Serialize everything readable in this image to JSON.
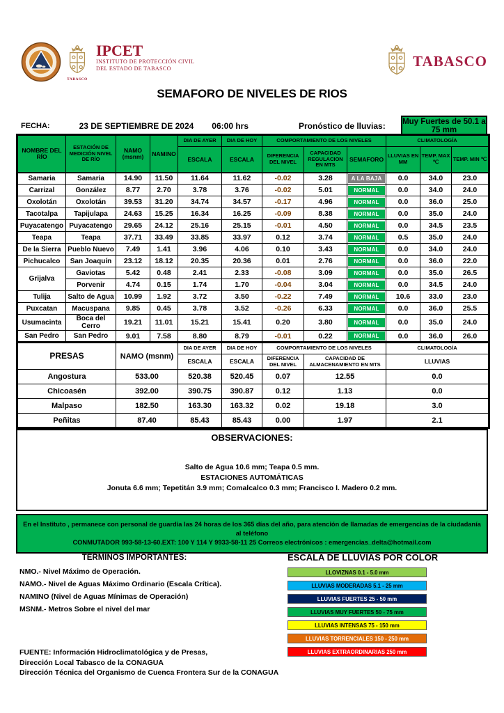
{
  "brand": {
    "ipcet_acronym": "IPCET",
    "ipcet_line1": "INSTITUTO DE PROTECCIÓN CIVIL",
    "ipcet_line2": "DEL ESTADO DE TABASCO",
    "left_crest_caption": "TABASCO",
    "right_wordmark": "TABASCO"
  },
  "title": "SEMAFORO DE NIVELES DE RIOS",
  "date_bar": {
    "fecha_label": "FECHA:",
    "fecha_value": "23 DE SEPTIEMBRE DE 2024",
    "hora": "06:00 hrs",
    "pronostico_label": "Pronóstico de lluvias:",
    "pronostico_value": "Muy Fuertes de 50.1 a 75 mm"
  },
  "rivers_table": {
    "headers": {
      "rio": "NOMBRE DEL RÍO",
      "estacion": "ESTACIÓN DE MEDICIÓN NIVEL DE RÍO",
      "namo": "NAMO (msnm)",
      "namino": "NAMINO",
      "ayer": "DIA DE AYER",
      "hoy": "DIA DE HOY",
      "escala": "ESCALA",
      "comportamiento": "COMPORTAMIENTO DE LOS NIVELES",
      "diferencia": "DIFERENCIA DEL NIVEL",
      "capacidad": "CAPACIDAD REGULACION EN MTS",
      "semaforo": "SEMAFORO",
      "climatologia": "CLIMATOLOGÍA",
      "lluvias": "LLUVIAS EN MM",
      "tmax": "TEMP. MAX ℃",
      "tmin": "TEMP. MIN ℃"
    },
    "rows": [
      {
        "rio": "Samaria",
        "estacion": "Samaria",
        "namo": "14.90",
        "namino": "11.50",
        "ayer": "11.64",
        "hoy": "11.62",
        "dif": "-0.02",
        "cap": "3.28",
        "sem": "A LA BAJA",
        "sem_color": "#808080",
        "lluvias": "0.0",
        "tmax": "34.0",
        "tmin": "23.0"
      },
      {
        "rio": "Carrizal",
        "estacion": "González",
        "namo": "8.77",
        "namino": "2.70",
        "ayer": "3.78",
        "hoy": "3.76",
        "dif": "-0.02",
        "cap": "5.01",
        "sem": "NORMAL",
        "sem_color": "#00B050",
        "lluvias": "0.0",
        "tmax": "34.0",
        "tmin": "24.0"
      },
      {
        "rio": "Oxolotán",
        "estacion": "Oxolotán",
        "namo": "39.53",
        "namino": "31.20",
        "ayer": "34.74",
        "hoy": "34.57",
        "dif": "-0.17",
        "cap": "4.96",
        "sem": "NORMAL",
        "sem_color": "#00B050",
        "lluvias": "0.0",
        "tmax": "36.0",
        "tmin": "25.0"
      },
      {
        "rio": "Tacotalpa",
        "estacion": "Tapijulapa",
        "namo": "24.63",
        "namino": "15.25",
        "ayer": "16.34",
        "hoy": "16.25",
        "dif": "-0.09",
        "cap": "8.38",
        "sem": "NORMAL",
        "sem_color": "#00B050",
        "lluvias": "0.0",
        "tmax": "35.0",
        "tmin": "24.0"
      },
      {
        "rio": "Puyacatengo",
        "estacion": "Puyacatengo",
        "namo": "29.65",
        "namino": "24.12",
        "ayer": "25.16",
        "hoy": "25.15",
        "dif": "-0.01",
        "cap": "4.50",
        "sem": "NORMAL",
        "sem_color": "#00B050",
        "lluvias": "0.0",
        "tmax": "34.5",
        "tmin": "23.5"
      },
      {
        "rio": "Teapa",
        "estacion": "Teapa",
        "namo": "37.71",
        "namino": "33.49",
        "ayer": "33.85",
        "hoy": "33.97",
        "dif": "0.12",
        "cap": "3.74",
        "sem": "NORMAL",
        "sem_color": "#00B050",
        "lluvias": "0.5",
        "tmax": "35.0",
        "tmin": "24.0"
      },
      {
        "rio": "De la Sierra",
        "estacion": "Pueblo Nuevo",
        "namo": "7.49",
        "namino": "1.41",
        "ayer": "3.96",
        "hoy": "4.06",
        "dif": "0.10",
        "cap": "3.43",
        "sem": "NORMAL",
        "sem_color": "#00B050",
        "lluvias": "0.0",
        "tmax": "34.0",
        "tmin": "24.0"
      },
      {
        "rio": "Pichucalco",
        "estacion": "San Joaquín",
        "namo": "23.12",
        "namino": "18.12",
        "ayer": "20.35",
        "hoy": "20.36",
        "dif": "0.01",
        "cap": "2.76",
        "sem": "NORMAL",
        "sem_color": "#00B050",
        "lluvias": "0.0",
        "tmax": "36.0",
        "tmin": "22.0"
      },
      {
        "rio": "Grijalva",
        "rio_span": 2,
        "estacion": "Gaviotas",
        "namo": "5.42",
        "namino": "0.48",
        "ayer": "2.41",
        "hoy": "2.33",
        "dif": "-0.08",
        "cap": "3.09",
        "sem": "NORMAL",
        "sem_color": "#00B050",
        "lluvias": "0.0",
        "tmax": "35.0",
        "tmin": "26.5"
      },
      {
        "rio": null,
        "estacion": "Porvenir",
        "namo": "4.74",
        "namino": "0.15",
        "ayer": "1.74",
        "hoy": "1.70",
        "dif": "-0.04",
        "cap": "3.04",
        "sem": "NORMAL",
        "sem_color": "#00B050",
        "lluvias": "0.0",
        "tmax": "34.5",
        "tmin": "24.0"
      },
      {
        "rio": "Tulija",
        "estacion": "Salto de Agua",
        "namo": "10.99",
        "namino": "1.92",
        "ayer": "3.72",
        "hoy": "3.50",
        "dif": "-0.22",
        "cap": "7.49",
        "sem": "NORMAL",
        "sem_color": "#00B050",
        "lluvias": "10.6",
        "tmax": "33.0",
        "tmin": "23.0"
      },
      {
        "rio": "Puxcatan",
        "estacion": "Macuspana",
        "namo": "9.85",
        "namino": "0.45",
        "ayer": "3.78",
        "hoy": "3.52",
        "dif": "-0.26",
        "cap": "6.33",
        "sem": "NORMAL",
        "sem_color": "#00B050",
        "lluvias": "0.0",
        "tmax": "36.0",
        "tmin": "25.5"
      },
      {
        "rio": "Usumacinta",
        "estacion": "Boca del Cerro",
        "namo": "19.21",
        "namino": "11.01",
        "ayer": "15.21",
        "hoy": "15.41",
        "dif": "0.20",
        "cap": "3.80",
        "sem": "NORMAL",
        "sem_color": "#00B050",
        "lluvias": "0.0",
        "tmax": "35.0",
        "tmin": "24.0"
      },
      {
        "rio": "San Pedro",
        "estacion": "San Pedro",
        "namo": "9.01",
        "namino": "7.58",
        "ayer": "8.80",
        "hoy": "8.79",
        "dif": "-0.01",
        "cap": "0.22",
        "sem": "NORMAL",
        "sem_color": "#00B050",
        "lluvias": "0.0",
        "tmax": "36.0",
        "tmin": "26.0"
      }
    ]
  },
  "presas_table": {
    "headers": {
      "presas": "PRESAS",
      "namo": "NAMO (msnm)",
      "ayer": "DIA DE AYER",
      "hoy": "DIA DE HOY",
      "escala": "ESCALA",
      "comportamiento": "COMPORTAMIENTO DE LOS NIVELES",
      "diferencia": "DIFERENCIA DEL NIVEL",
      "capacidad": "CAPACIDAD DE ALMACENAMIENTO EN MTS",
      "climatologia": "CLIMATOLOGÍA",
      "lluvias": "LLUVIAS"
    },
    "rows": [
      {
        "presa": "Angostura",
        "namo": "533.00",
        "ayer": "520.38",
        "hoy": "520.45",
        "dif": "0.07",
        "cap": "12.55",
        "lluvias": "0.0"
      },
      {
        "presa": "Chicoasén",
        "namo": "392.00",
        "ayer": "390.75",
        "hoy": "390.87",
        "dif": "0.12",
        "cap": "1.13",
        "lluvias": "0.0"
      },
      {
        "presa": "Malpaso",
        "namo": "182.50",
        "ayer": "163.30",
        "hoy": "163.32",
        "dif": "0.02",
        "cap": "19.18",
        "lluvias": "3.0"
      },
      {
        "presa": "Peñitas",
        "namo": "87.40",
        "ayer": "85.43",
        "hoy": "85.43",
        "dif": "0.00",
        "cap": "1.97",
        "lluvias": "2.1"
      }
    ]
  },
  "observaciones": {
    "title": "OBSERVACIONES:",
    "lines": [
      "Salto de Agua 10.6 mm; Teapa 0.5 mm.",
      "ESTACIONES AUTOMÁTICAS",
      "Jonuta 6.6 mm; Tepetitán 3.9 mm; Comalcalco 0.3 mm; Francisco I. Madero 0.2 mm."
    ]
  },
  "banner": {
    "lines": [
      "En el Instituto , permanece con personal de guardia las 24 horas de los 365 días del año, para atención de llamadas de emergencias de la ciudadanía al teléfono",
      "CONMUTADOR  993-58-13-60.EXT: 100 Y 114  Y 9933-58-11 25   Correos electrónicos : emergencias_delta@hotmail.com"
    ]
  },
  "terminos": {
    "title": "TÉRMINOS IMPORTANTES:",
    "lines": [
      "NMO.- Nivel Máximo de Operación.",
      "NAMO.- Nivel de Aguas Máximo Ordinario (Escala Crítica).",
      "NAMINO (Nivel de Aguas Mínimas de Operación)",
      "MSNM.- Metros Sobre el nivel del mar"
    ]
  },
  "escala_colores": {
    "title": "ESCALA DE LLUVIAS POR COLOR",
    "items": [
      {
        "label": "LLOVIZNAS   0.1 -  5.0 mm",
        "bg": "#92D050",
        "fg": "#000000"
      },
      {
        "label": "LLUVIAS MODERADAS 5.1 - 25 mm",
        "bg": "#00B0F0",
        "fg": "#000000"
      },
      {
        "label": "LLUVIAS FUERTES       25 - 50 mm",
        "bg": "#002060",
        "fg": "#FFFFFF"
      },
      {
        "label": "LLUVIAS MUY FUERTES   50 - 75 mm",
        "bg": "#00B050",
        "fg": "#000000"
      },
      {
        "label": "LLUVIAS INTENSAS    75 - 150 mm",
        "bg": "#FFFF00",
        "fg": "#000000"
      },
      {
        "label": "LLUVIAS TORRENCIALES  150 - 250  mm",
        "bg": "#E36C09",
        "fg": "#FFFFFF"
      },
      {
        "label": "LLUVIAS EXTRAORDINARIAS 250  mm",
        "bg": "#FF0000",
        "fg": "#FFFFFF"
      }
    ]
  },
  "fuente": {
    "lines": [
      "FUENTE: Información Hidroclimatológica y de Presas,",
      "Dirección Local Tabasco de la CONAGUA",
      "Dirección Técnica del Organismo de Cuenca Frontera Sur de la CONAGUA"
    ]
  },
  "colors": {
    "green": "#00B050",
    "gray": "#808080",
    "negative": "#7B3F00",
    "maroon": "#9E1B32",
    "gold": "#B2904F"
  }
}
